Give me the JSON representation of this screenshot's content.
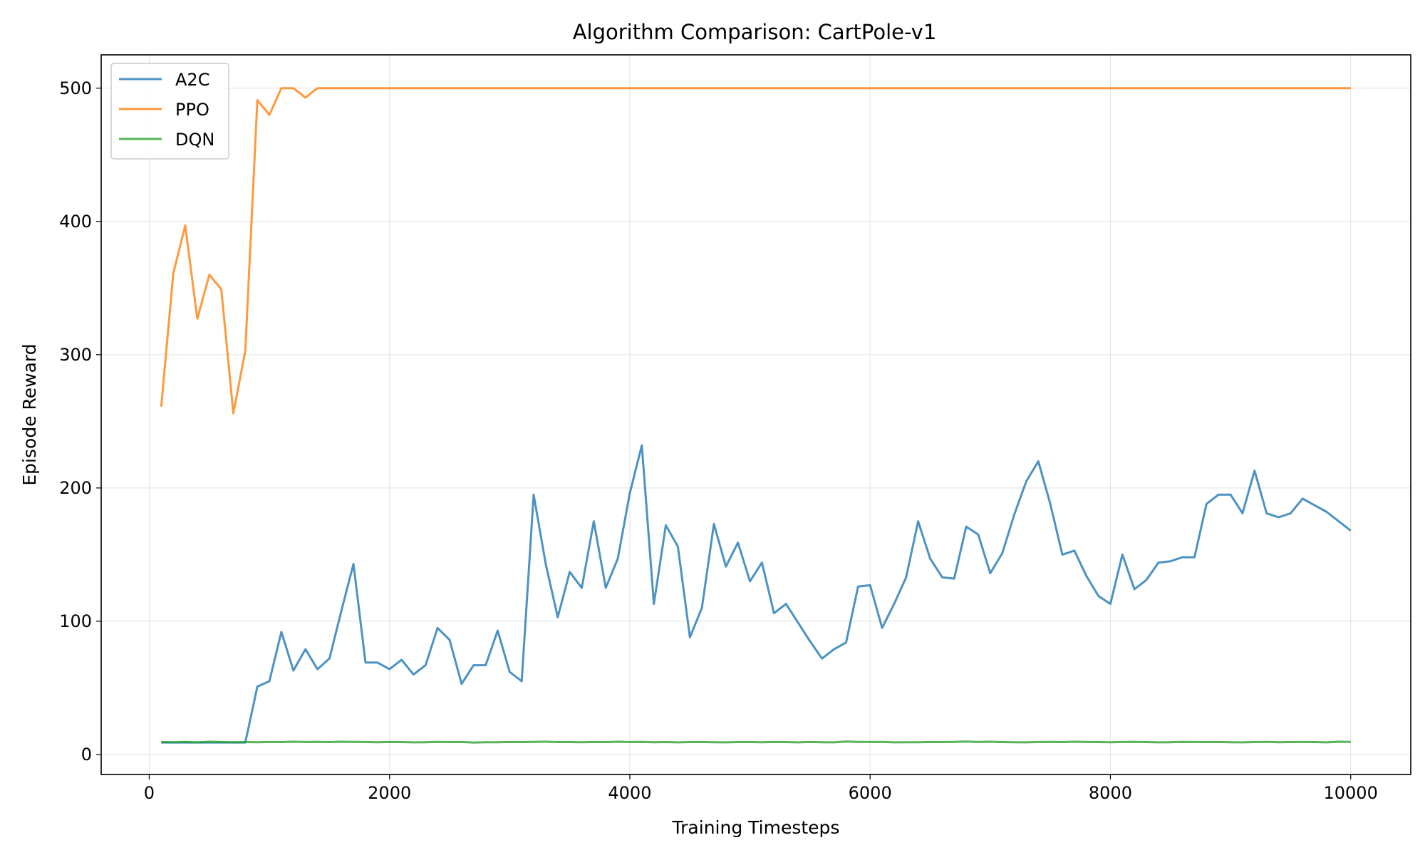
{
  "chart_data": {
    "type": "line",
    "title": "Algorithm Comparison: CartPole-v1",
    "xlabel": "Training Timesteps",
    "ylabel": "Episode Reward",
    "xlim": [
      -400,
      10500
    ],
    "ylim": [
      -15,
      525
    ],
    "xticks": [
      0,
      2000,
      4000,
      6000,
      8000,
      10000
    ],
    "yticks": [
      0,
      100,
      200,
      300,
      400,
      500
    ],
    "grid": true,
    "legend_position": "upper-left",
    "x": [
      100,
      200,
      300,
      400,
      500,
      600,
      700,
      800,
      900,
      1000,
      1100,
      1200,
      1300,
      1400,
      1500,
      1600,
      1700,
      1800,
      1900,
      2000,
      2100,
      2200,
      2300,
      2400,
      2500,
      2600,
      2700,
      2800,
      2900,
      3000,
      3100,
      3200,
      3300,
      3400,
      3500,
      3600,
      3700,
      3800,
      3900,
      4000,
      4100,
      4200,
      4300,
      4400,
      4500,
      4600,
      4700,
      4800,
      4900,
      5000,
      5100,
      5200,
      5300,
      5400,
      5500,
      5600,
      5700,
      5800,
      5900,
      6000,
      6100,
      6200,
      6300,
      6400,
      6500,
      6600,
      6700,
      6800,
      6900,
      7000,
      7100,
      7200,
      7300,
      7400,
      7500,
      7600,
      7700,
      7800,
      7900,
      8000,
      8100,
      8200,
      8300,
      8400,
      8500,
      8600,
      8700,
      8800,
      8900,
      9000,
      9100,
      9200,
      9300,
      9400,
      9500,
      9600,
      9700,
      9800,
      9900,
      10000
    ],
    "series": [
      {
        "name": "A2C",
        "color": "#1f77b4",
        "values": [
          9,
          9,
          9,
          9,
          9,
          9,
          9,
          9,
          51,
          55,
          92,
          63,
          79,
          64,
          72,
          108,
          143,
          69,
          69,
          64,
          71,
          60,
          67,
          95,
          86,
          53,
          67,
          67,
          93,
          62,
          55,
          195,
          143,
          103,
          137,
          125,
          175,
          125,
          147,
          196,
          232,
          113,
          172,
          156,
          88,
          110,
          173,
          141,
          159,
          130,
          144,
          106,
          113,
          99,
          85,
          72,
          79,
          84,
          126,
          127,
          95,
          113,
          133,
          175,
          147,
          133,
          132,
          171,
          165,
          136,
          151,
          180,
          205,
          220,
          188,
          150,
          153,
          134,
          119,
          113,
          150,
          124,
          131,
          144,
          145,
          148,
          148,
          188,
          195,
          195,
          181,
          213,
          181,
          178,
          181,
          192,
          187,
          182,
          175,
          168
        ]
      },
      {
        "name": "PPO",
        "color": "#ff7f0e",
        "values": [
          261,
          361,
          397,
          327,
          360,
          349,
          256,
          303,
          491,
          480,
          500,
          500,
          493,
          500,
          500,
          500,
          500,
          500,
          500,
          500,
          500,
          500,
          500,
          500,
          500,
          500,
          500,
          500,
          500,
          500,
          500,
          500,
          500,
          500,
          500,
          500,
          500,
          500,
          500,
          500,
          500,
          500,
          500,
          500,
          500,
          500,
          500,
          500,
          500,
          500,
          500,
          500,
          500,
          500,
          500,
          500,
          500,
          500,
          500,
          500,
          500,
          500,
          500,
          500,
          500,
          500,
          500,
          500,
          500,
          500,
          500,
          500,
          500,
          500,
          500,
          500,
          500,
          500,
          500,
          500,
          500,
          500,
          500,
          500,
          500,
          500,
          500,
          500,
          500,
          500,
          500,
          500,
          500,
          500,
          500,
          500,
          500,
          500,
          500,
          500
        ]
      },
      {
        "name": "DQN",
        "color": "#2ca02c",
        "values": [
          9.4,
          9.2,
          9.5,
          9.1,
          9.6,
          9.4,
          9.2,
          9.3,
          9.2,
          9.4,
          9.3,
          9.6,
          9.4,
          9.5,
          9.3,
          9.6,
          9.5,
          9.3,
          9.2,
          9.4,
          9.3,
          9.1,
          9.2,
          9.5,
          9.3,
          9.4,
          9.0,
          9.2,
          9.2,
          9.4,
          9.3,
          9.5,
          9.6,
          9.3,
          9.3,
          9.2,
          9.4,
          9.3,
          9.6,
          9.3,
          9.5,
          9.2,
          9.3,
          9.1,
          9.3,
          9.4,
          9.2,
          9.1,
          9.3,
          9.3,
          9.2,
          9.4,
          9.3,
          9.1,
          9.4,
          9.2,
          9.1,
          9.7,
          9.5,
          9.4,
          9.5,
          9.1,
          9.2,
          9.2,
          9.4,
          9.3,
          9.5,
          9.7,
          9.4,
          9.6,
          9.3,
          9.2,
          9.1,
          9.4,
          9.5,
          9.3,
          9.6,
          9.4,
          9.3,
          9.2,
          9.4,
          9.5,
          9.3,
          9.1,
          9.2,
          9.5,
          9.4,
          9.3,
          9.4,
          9.2,
          9.1,
          9.3,
          9.5,
          9.2,
          9.3,
          9.4,
          9.3,
          9.1,
          9.6,
          9.5
        ]
      }
    ]
  }
}
